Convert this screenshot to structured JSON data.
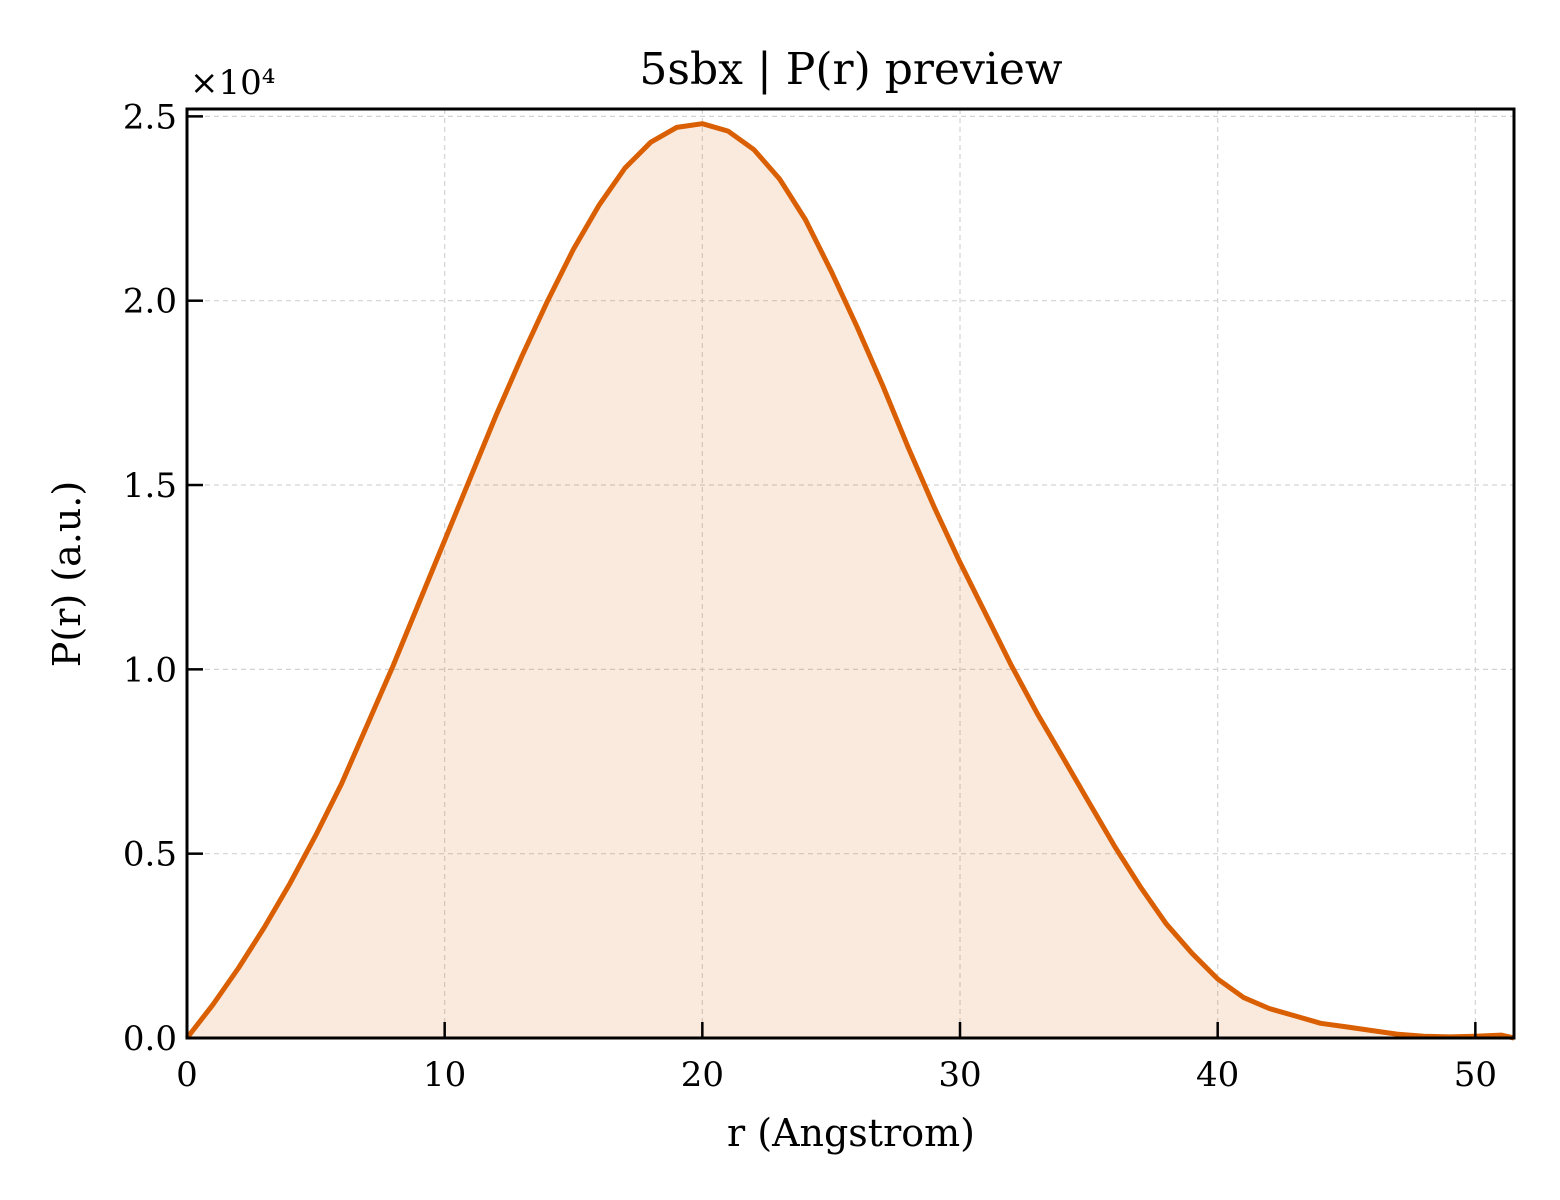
{
  "chart_data": {
    "type": "area",
    "title": "5sbx | P(r) preview",
    "xlabel": "r (Angstrom)",
    "ylabel": "P(r) (a.u.)",
    "y_multiplier": "×10⁴",
    "xlim": [
      0,
      51.5
    ],
    "ylim": [
      0,
      2.52
    ],
    "y_scale_factor": 10000,
    "xticks": [
      0,
      10,
      20,
      30,
      40,
      50
    ],
    "xtick_labels": [
      "0",
      "10",
      "20",
      "30",
      "40",
      "50"
    ],
    "yticks": [
      0,
      0.5,
      1.0,
      1.5,
      2.0,
      2.5
    ],
    "ytick_labels": [
      "0.0",
      "0.5",
      "1.0",
      "1.5",
      "2.0",
      "2.5"
    ],
    "grid": true,
    "legend": "none",
    "colors": {
      "line": "#d95f02",
      "fill": "#d95f02"
    },
    "series": [
      {
        "x": [
          0,
          1,
          2,
          3,
          4,
          5,
          6,
          7,
          8,
          9,
          10,
          11,
          12,
          13,
          14,
          15,
          16,
          17,
          18,
          19,
          20,
          21,
          22,
          23,
          24,
          25,
          26,
          27,
          28,
          29,
          30,
          31,
          32,
          33,
          34,
          35,
          36,
          37,
          38,
          39,
          40,
          41,
          42,
          43,
          44,
          45,
          46,
          47,
          48,
          49,
          50,
          51,
          51.5
        ],
        "y": [
          0,
          0.09,
          0.19,
          0.3,
          0.42,
          0.55,
          0.69,
          0.85,
          1.01,
          1.18,
          1.35,
          1.52,
          1.69,
          1.85,
          2.0,
          2.14,
          2.26,
          2.36,
          2.43,
          2.47,
          2.48,
          2.46,
          2.41,
          2.33,
          2.22,
          2.08,
          1.93,
          1.77,
          1.6,
          1.44,
          1.29,
          1.15,
          1.01,
          0.88,
          0.76,
          0.64,
          0.52,
          0.41,
          0.31,
          0.23,
          0.16,
          0.11,
          0.08,
          0.06,
          0.04,
          0.03,
          0.02,
          0.01,
          0.005,
          0.003,
          0.005,
          0.008,
          0
        ]
      }
    ]
  }
}
